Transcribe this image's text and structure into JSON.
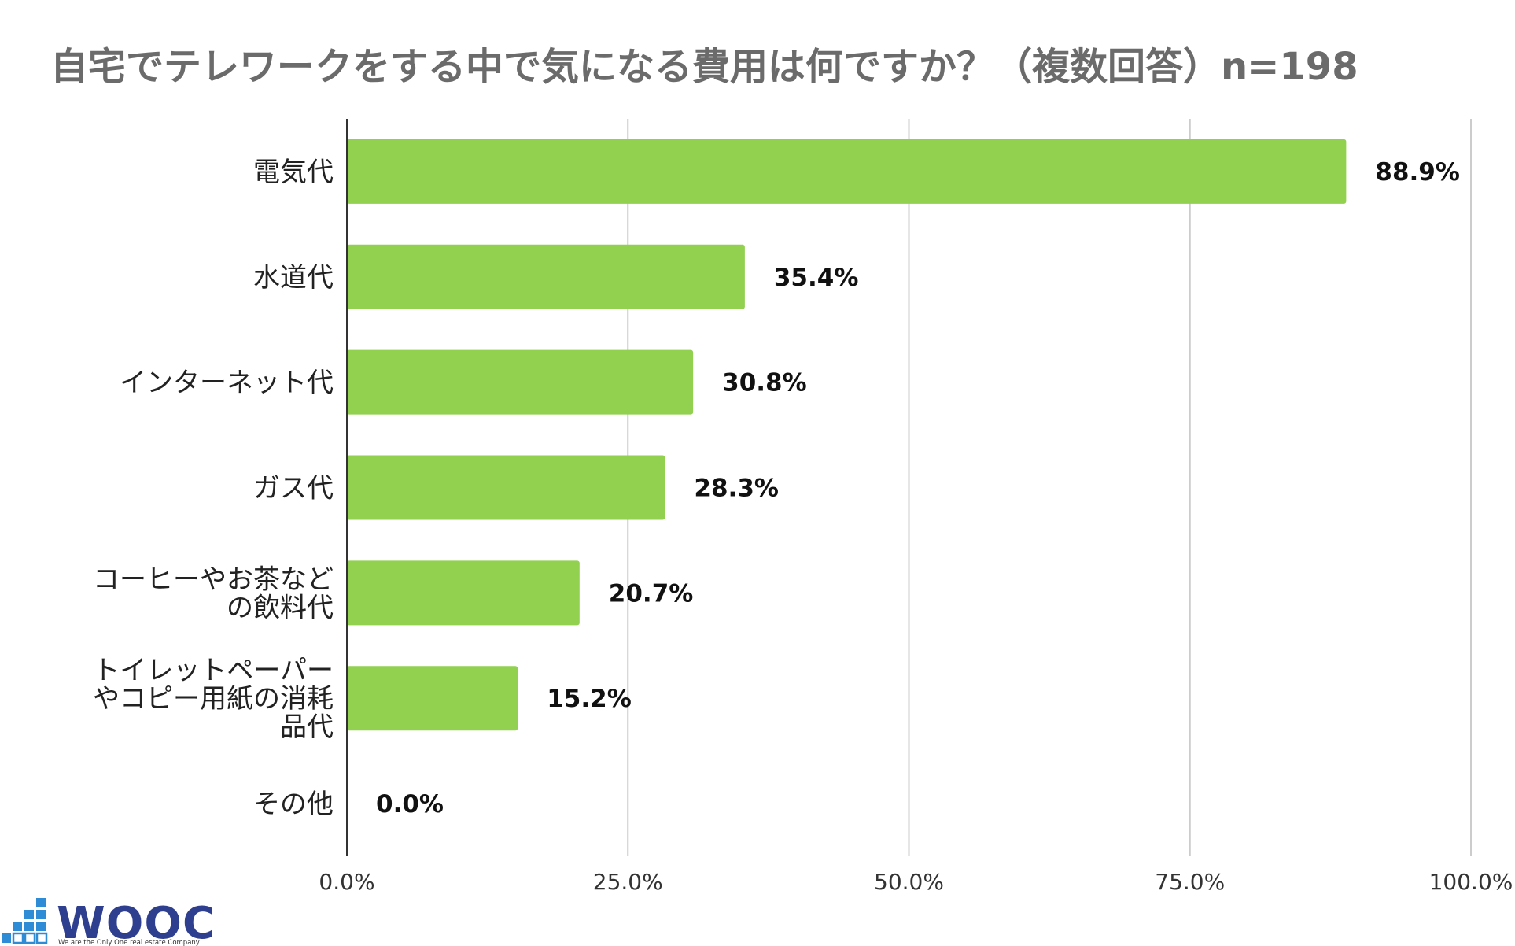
{
  "chart_data": {
    "type": "bar",
    "orientation": "horizontal",
    "title": "自宅でテレワークをする中で気になる費用は何ですか？（複数回答）n=198",
    "categories": [
      [
        "電気代"
      ],
      [
        "水道代"
      ],
      [
        "インターネット代"
      ],
      [
        "ガス代"
      ],
      [
        "コーヒーやお茶など",
        "の飲料代"
      ],
      [
        "トイレットペーパー",
        "やコピー用紙の消耗",
        "品代"
      ],
      [
        "その他"
      ]
    ],
    "values": [
      88.9,
      35.4,
      30.8,
      28.3,
      20.7,
      15.2,
      0.0
    ],
    "value_labels": [
      "88.9%",
      "35.4%",
      "30.8%",
      "28.3%",
      "20.7%",
      "15.2%",
      "0.0%"
    ],
    "xlim": [
      0,
      100
    ],
    "xticks": [
      0,
      25,
      50,
      75,
      100
    ],
    "xtick_labels": [
      "0.0%",
      "25.0%",
      "50.0%",
      "75.0%",
      "100.0%"
    ],
    "grid": "vertical",
    "bar_color": "#92d050"
  },
  "logo": {
    "text": "WOOC",
    "tagline": "We are the Only One real estate Company",
    "color": "#2f3f8f",
    "accent": "#2e8bd6"
  }
}
